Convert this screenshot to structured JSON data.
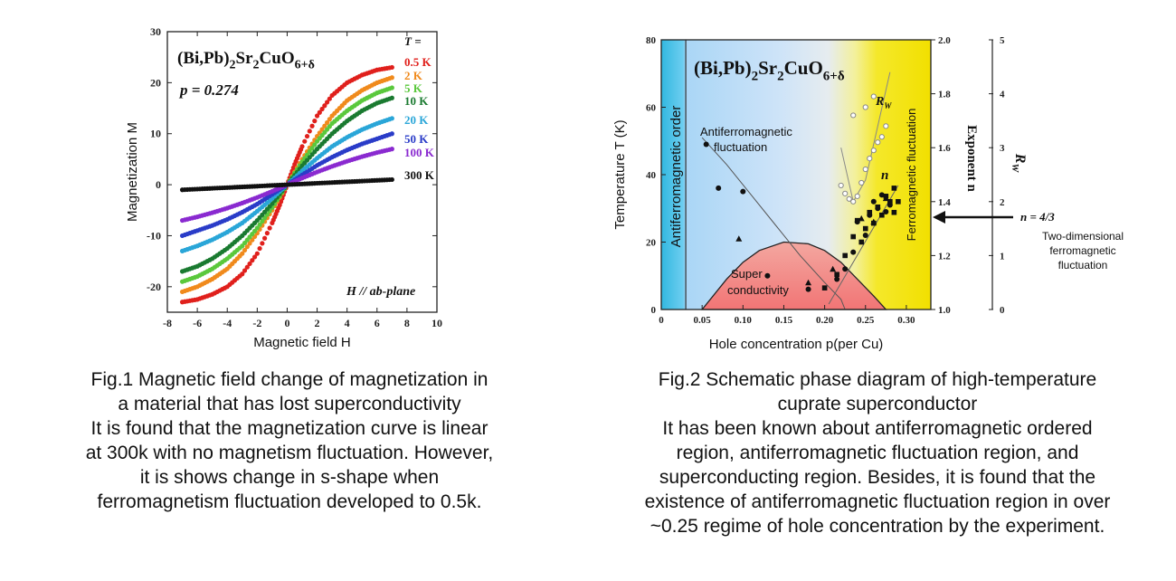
{
  "fig1": {
    "caption": [
      "Fig.1 Magnetic field change of magnetization in",
      "a material that has lost superconductivity",
      "It is found that the magnetization curve is linear",
      "at 300k with no magnetism fluctuation. However,",
      "it is shows change in s-shape when",
      "ferromagnetism fluctuation developed to 0.5k."
    ]
  },
  "fig2": {
    "caption": [
      "Fig.2 Schematic phase diagram of high-temperature",
      "cuprate superconductor",
      "It has been known about antiferromagnetic ordered",
      "region, antiferromagnetic fluctuation region, and",
      "superconducting region. Besides, it is found that the",
      "existence of antiferromagnetic fluctuation region in over",
      "~0.25 regime of hole concentration by the experiment."
    ]
  },
  "chart_data": [
    {
      "type": "scatter",
      "formula": "(Bi,Pb)2Sr2CuO6+δ",
      "annotation_p": "p = 0.274",
      "annotation_field": "H // ab-plane",
      "xlabel": "Magnetic field H",
      "ylabel": "Magnetization M",
      "xlim": [
        -8,
        10
      ],
      "ylim": [
        -25,
        30
      ],
      "xticks": [
        -8,
        -6,
        -4,
        -2,
        0,
        2,
        4,
        6,
        8,
        10
      ],
      "yticks": [
        -20,
        -10,
        0,
        10,
        20,
        30
      ],
      "legend_title": "T =",
      "legend_placement": "top-right",
      "series": [
        {
          "name": "0.5 K",
          "color": "#e0201c",
          "x": [
            -7,
            -6,
            -5,
            -4,
            -3,
            -2,
            -1,
            -0.5,
            0,
            0.5,
            1,
            2,
            3,
            4,
            5,
            6,
            7
          ],
          "y": [
            -23,
            -22.5,
            -21.5,
            -20,
            -17.5,
            -13.5,
            -7.5,
            -4,
            0,
            4,
            7.5,
            13.5,
            17.5,
            20,
            21.5,
            22.5,
            23
          ]
        },
        {
          "name": "2 K",
          "color": "#f08a1c",
          "x": [
            -7,
            -6,
            -5,
            -4,
            -3,
            -2,
            -1,
            0,
            1,
            2,
            3,
            4,
            5,
            6,
            7
          ],
          "y": [
            -21,
            -20,
            -18.5,
            -16.5,
            -13.5,
            -9.5,
            -5,
            0,
            5,
            9.5,
            13.5,
            16.5,
            18.5,
            20,
            21
          ]
        },
        {
          "name": "5 K",
          "color": "#5ac83c",
          "x": [
            -7,
            -6,
            -5,
            -4,
            -3,
            -2,
            -1,
            0,
            1,
            2,
            3,
            4,
            5,
            6,
            7
          ],
          "y": [
            -19,
            -18,
            -16.5,
            -14.5,
            -12,
            -8.5,
            -4.5,
            0,
            4.5,
            8.5,
            12,
            14.5,
            16.5,
            18,
            19
          ]
        },
        {
          "name": "10 K",
          "color": "#1a7a30",
          "x": [
            -7,
            -6,
            -5,
            -4,
            -3,
            -2,
            -1,
            0,
            1,
            2,
            3,
            4,
            5,
            6,
            7
          ],
          "y": [
            -17,
            -16,
            -14.5,
            -12.5,
            -10,
            -7,
            -3.7,
            0,
            3.7,
            7,
            10,
            12.5,
            14.5,
            16,
            17
          ]
        },
        {
          "name": "20 K",
          "color": "#2aa6d8",
          "x": [
            -7,
            -6,
            -5,
            -4,
            -3,
            -2,
            -1,
            0,
            1,
            2,
            3,
            4,
            5,
            6,
            7
          ],
          "y": [
            -13,
            -12,
            -10.8,
            -9.3,
            -7.5,
            -5.2,
            -2.7,
            0,
            2.7,
            5.2,
            7.5,
            9.3,
            10.8,
            12,
            13
          ]
        },
        {
          "name": "50 K",
          "color": "#2a3cc8",
          "x": [
            -7,
            -6,
            -5,
            -4,
            -3,
            -2,
            -1,
            0,
            1,
            2,
            3,
            4,
            5,
            6,
            7
          ],
          "y": [
            -10,
            -9,
            -8,
            -6.8,
            -5.4,
            -3.8,
            -1.9,
            0,
            1.9,
            3.8,
            5.4,
            6.8,
            8,
            9,
            10
          ]
        },
        {
          "name": "100 K",
          "color": "#8a2ad0",
          "x": [
            -7,
            -6,
            -5,
            -4,
            -3,
            -2,
            -1,
            0,
            1,
            2,
            3,
            4,
            5,
            6,
            7
          ],
          "y": [
            -7,
            -6.3,
            -5.5,
            -4.6,
            -3.6,
            -2.5,
            -1.3,
            0,
            1.3,
            2.5,
            3.6,
            4.6,
            5.5,
            6.3,
            7
          ]
        },
        {
          "name": "300 K",
          "color": "#111111",
          "x": [
            -7,
            -6,
            -5,
            -4,
            -3,
            -2,
            -1,
            0,
            1,
            2,
            3,
            4,
            5,
            6,
            7
          ],
          "y": [
            -1,
            -0.86,
            -0.71,
            -0.57,
            -0.43,
            -0.29,
            -0.14,
            0,
            0.14,
            0.29,
            0.43,
            0.57,
            0.71,
            0.86,
            1
          ]
        }
      ]
    },
    {
      "type": "scatter",
      "formula": "(Bi,Pb)2Sr2CuO6+δ",
      "xlabel": "Hole concentration p(per Cu)",
      "ylabel_left": "Temperature T (K)",
      "ylabel_mid": "Exponent n",
      "ylabel_right": "RW",
      "xlim": [
        0,
        0.33
      ],
      "ylim_left": [
        0,
        80
      ],
      "ylim_mid": [
        1.0,
        2.0
      ],
      "ylim_right": [
        0,
        5
      ],
      "xticks": [
        0,
        0.05,
        0.1,
        0.15,
        0.2,
        0.25,
        0.3
      ],
      "xtick_labels": [
        "0",
        "0.05",
        "0.10",
        "0.15",
        "0.20",
        "0.25",
        "0.30"
      ],
      "yticks_left": [
        0,
        20,
        40,
        60,
        80
      ],
      "yticks_mid": [
        1.0,
        1.2,
        1.4,
        1.6,
        1.8,
        2.0
      ],
      "ytick_labels_mid": [
        "1.0",
        "1.2",
        "1.4",
        "1.6",
        "1.8",
        "2.0"
      ],
      "yticks_right": [
        0,
        1,
        2,
        3,
        4,
        5
      ],
      "regions": [
        {
          "label": "Antiferromagnetic order",
          "p_range": [
            0,
            0.03
          ],
          "color": "#3ec2e8"
        },
        {
          "label": "Antiferromagnetic fluctuation",
          "p_range": [
            0.03,
            0.24
          ],
          "color": "#b8dcf8"
        },
        {
          "label": "Ferromagnetic fluctuation",
          "p_range": [
            0.27,
            0.33
          ],
          "color": "#f4e82a"
        },
        {
          "label": "Super conductivity",
          "dome_p_range": [
            0.05,
            0.275
          ],
          "dome_max_T": 20,
          "color": "#f08c8c"
        }
      ],
      "superconducting_dome": {
        "p": [
          0.05,
          0.08,
          0.1,
          0.12,
          0.15,
          0.18,
          0.2,
          0.22,
          0.24,
          0.26,
          0.275
        ],
        "T": [
          0,
          9,
          14,
          17.5,
          20,
          19.5,
          17.5,
          14,
          9,
          4,
          0
        ]
      },
      "afm_fluctuation_line": {
        "p": [
          0.05,
          0.08,
          0.11,
          0.14,
          0.17,
          0.2,
          0.22,
          0.225
        ],
        "T": [
          51,
          43,
          34,
          25,
          16,
          8,
          3,
          0
        ]
      },
      "rw_curve": {
        "p": [
          0.22,
          0.235,
          0.25,
          0.265,
          0.28
        ],
        "Rw": [
          3.0,
          2.0,
          2.4,
          3.4,
          4.4
        ]
      },
      "filled_circles": {
        "p": [
          0.055,
          0.07,
          0.1,
          0.13,
          0.18,
          0.215,
          0.225,
          0.235,
          0.24,
          0.25,
          0.255,
          0.26,
          0.265,
          0.27,
          0.275,
          0.28
        ],
        "T": [
          49,
          36,
          35,
          10,
          6,
          9,
          12,
          17,
          26,
          22,
          28,
          32,
          30,
          34,
          29,
          31
        ]
      },
      "triangles": {
        "p": [
          0.095,
          0.18,
          0.21,
          0.245,
          0.26,
          0.275
        ],
        "T": [
          21,
          8,
          12,
          27,
          26,
          33
        ]
      },
      "squares": {
        "n_p": [
          0.2,
          0.215,
          0.225,
          0.235,
          0.24,
          0.245,
          0.25,
          0.255,
          0.26,
          0.265,
          0.27,
          0.275,
          0.28,
          0.285,
          0.285,
          0.29
        ],
        "n": [
          1.08,
          1.13,
          1.2,
          1.27,
          1.33,
          1.25,
          1.3,
          1.36,
          1.32,
          1.38,
          1.35,
          1.42,
          1.4,
          1.45,
          1.36,
          1.4
        ]
      },
      "rw_points": {
        "p": [
          0.22,
          0.225,
          0.23,
          0.235,
          0.24,
          0.245,
          0.25,
          0.255,
          0.26,
          0.265,
          0.27,
          0.275,
          0.235,
          0.25,
          0.26
        ],
        "Rw": [
          2.3,
          2.15,
          2.05,
          2.0,
          2.1,
          2.35,
          2.6,
          2.8,
          2.95,
          3.1,
          3.2,
          3.4,
          3.6,
          3.75,
          3.95
        ]
      },
      "annotation_arrow_n": "n = 4/3",
      "annotation_arrow_text": [
        "Two-dimensional",
        "ferromagnetic",
        "fluctuation"
      ],
      "label_n": "n",
      "label_rw": "RW"
    }
  ]
}
